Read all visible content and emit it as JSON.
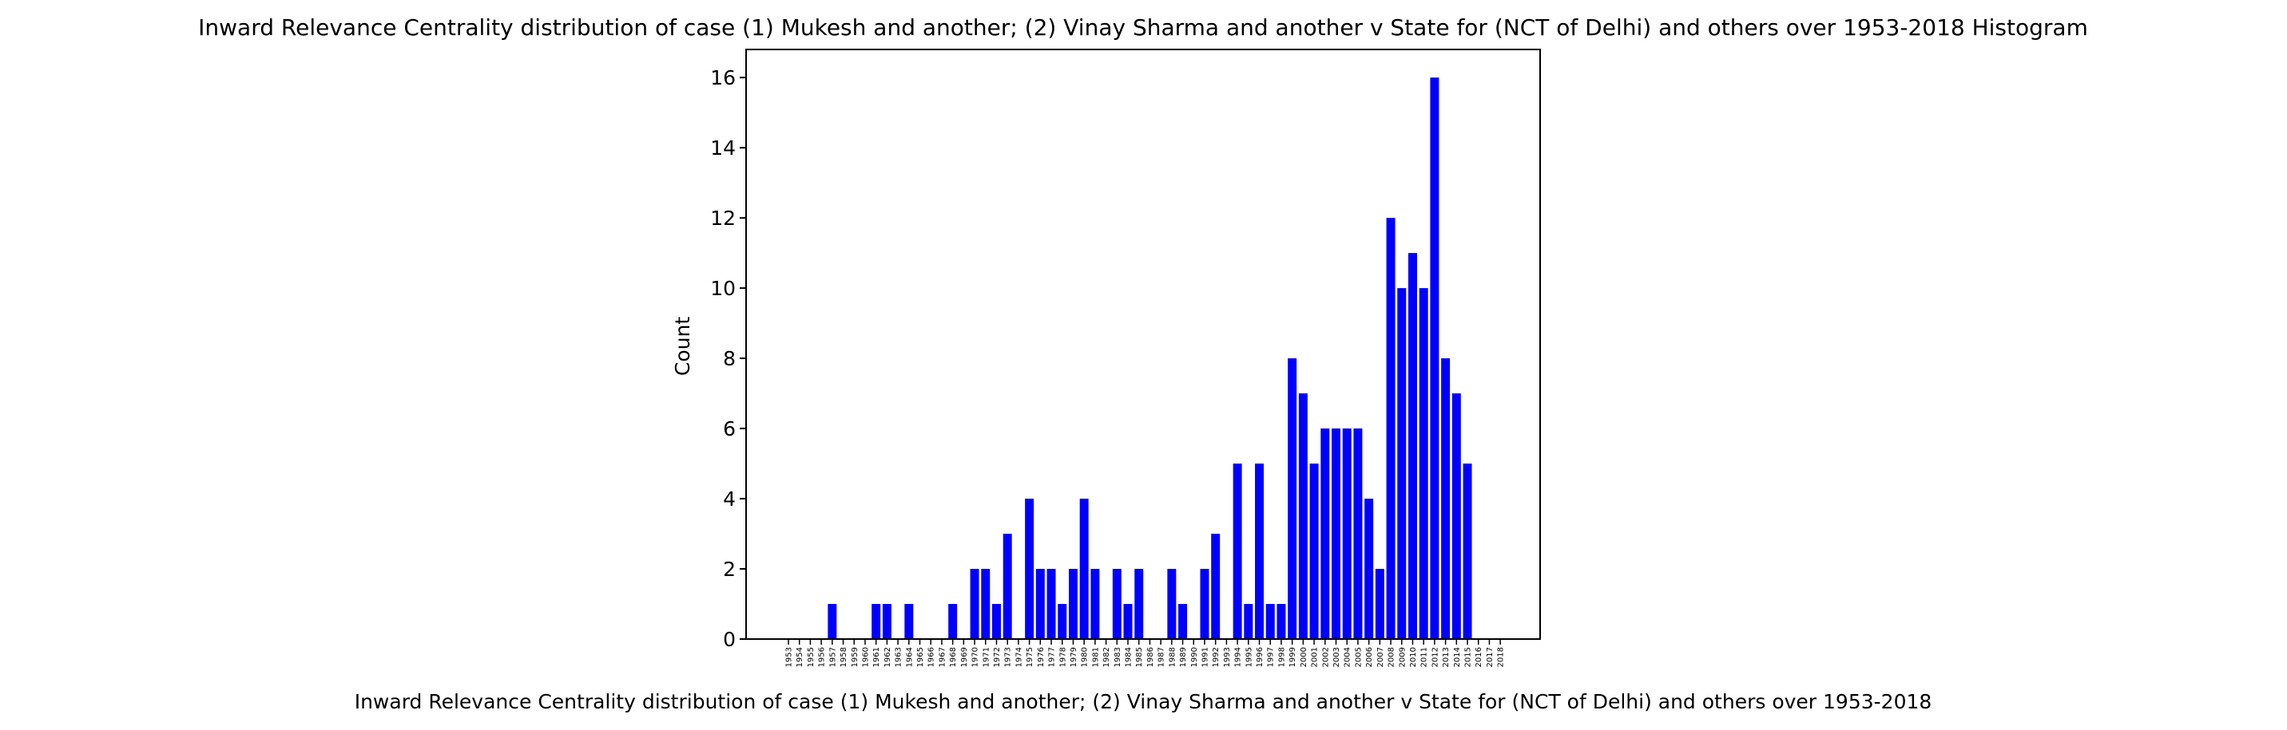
{
  "chart_data": {
    "type": "bar",
    "title": "Inward Relevance Centrality distribution of case (1) Mukesh and another; (2) Vinay Sharma and another v State for (NCT of Delhi) and others over 1953-2018 Histogram",
    "xlabel": "Inward Relevance Centrality distribution of case (1) Mukesh and another; (2) Vinay Sharma and another v State for (NCT of Delhi) and others over 1953-2018",
    "ylabel": "Count",
    "ylim": [
      0,
      16.8
    ],
    "yticks": [
      0,
      2,
      4,
      6,
      8,
      10,
      12,
      14,
      16
    ],
    "categories": [
      "1953",
      "1954",
      "1955",
      "1956",
      "1957",
      "1958",
      "1959",
      "1960",
      "1961",
      "1962",
      "1963",
      "1964",
      "1965",
      "1966",
      "1967",
      "1968",
      "1969",
      "1970",
      "1971",
      "1972",
      "1973",
      "1974",
      "1975",
      "1976",
      "1977",
      "1978",
      "1979",
      "1980",
      "1981",
      "1982",
      "1983",
      "1984",
      "1985",
      "1986",
      "1987",
      "1988",
      "1989",
      "1990",
      "1991",
      "1992",
      "1993",
      "1994",
      "1995",
      "1996",
      "1997",
      "1998",
      "1999",
      "2000",
      "2001",
      "2002",
      "2003",
      "2004",
      "2005",
      "2006",
      "2007",
      "2008",
      "2009",
      "2010",
      "2011",
      "2012",
      "2013",
      "2014",
      "2015",
      "2016",
      "2017",
      "2018"
    ],
    "values": [
      0,
      0,
      0,
      0,
      1,
      0,
      0,
      0,
      1,
      1,
      0,
      1,
      0,
      0,
      0,
      1,
      0,
      2,
      2,
      1,
      3,
      0,
      4,
      2,
      2,
      1,
      2,
      4,
      2,
      0,
      2,
      1,
      2,
      0,
      0,
      2,
      1,
      0,
      2,
      3,
      0,
      5,
      1,
      5,
      1,
      1,
      8,
      7,
      5,
      6,
      6,
      6,
      6,
      4,
      2,
      12,
      10,
      11,
      10,
      16,
      8,
      7,
      5,
      0,
      0,
      0
    ],
    "bar_color": "#0000ff",
    "grid": false,
    "legend": "none"
  }
}
